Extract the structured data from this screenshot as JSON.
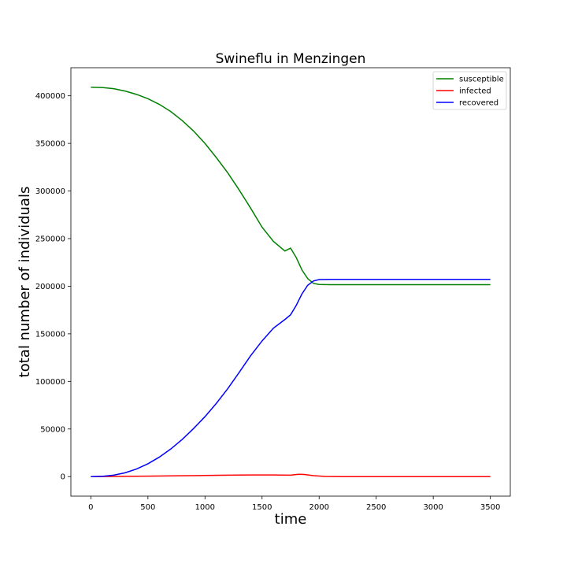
{
  "chart_data": {
    "type": "line",
    "title": "Swineflu in Menzingen",
    "xlabel": "time",
    "ylabel": "total number of individuals",
    "xlim": [
      -175,
      3675
    ],
    "ylim": [
      -20500,
      429500
    ],
    "xticks": [
      0,
      500,
      1000,
      1500,
      2000,
      2500,
      3000,
      3500
    ],
    "yticks": [
      0,
      50000,
      100000,
      150000,
      200000,
      250000,
      300000,
      350000,
      400000
    ],
    "legend_position": "top-right",
    "grid": false,
    "series": [
      {
        "name": "susceptible",
        "color": "#008000",
        "points": [
          [
            0,
            409000
          ],
          [
            100,
            408700
          ],
          [
            200,
            407500
          ],
          [
            300,
            405000
          ],
          [
            400,
            401500
          ],
          [
            500,
            397000
          ],
          [
            600,
            391000
          ],
          [
            700,
            383500
          ],
          [
            800,
            374000
          ],
          [
            900,
            363000
          ],
          [
            1000,
            350000
          ],
          [
            1100,
            335000
          ],
          [
            1200,
            319000
          ],
          [
            1300,
            301000
          ],
          [
            1400,
            282000
          ],
          [
            1500,
            262000
          ],
          [
            1600,
            247000
          ],
          [
            1700,
            237000
          ],
          [
            1750,
            240000
          ],
          [
            1800,
            230000
          ],
          [
            1850,
            217000
          ],
          [
            1900,
            208000
          ],
          [
            1950,
            203000
          ],
          [
            2000,
            201800
          ],
          [
            2100,
            201600
          ],
          [
            2500,
            201600
          ],
          [
            3000,
            201600
          ],
          [
            3500,
            201600
          ]
        ]
      },
      {
        "name": "infected",
        "color": "#ff0000",
        "points": [
          [
            0,
            0
          ],
          [
            200,
            200
          ],
          [
            500,
            500
          ],
          [
            800,
            900
          ],
          [
            1000,
            1200
          ],
          [
            1200,
            1500
          ],
          [
            1400,
            1700
          ],
          [
            1600,
            1700
          ],
          [
            1750,
            1500
          ],
          [
            1820,
            2500
          ],
          [
            1870,
            2200
          ],
          [
            1950,
            1000
          ],
          [
            2050,
            200
          ],
          [
            2200,
            0
          ],
          [
            3500,
            0
          ]
        ]
      },
      {
        "name": "recovered",
        "color": "#0000ff",
        "points": [
          [
            0,
            0
          ],
          [
            100,
            300
          ],
          [
            200,
            1500
          ],
          [
            300,
            4000
          ],
          [
            400,
            8000
          ],
          [
            500,
            13500
          ],
          [
            600,
            20500
          ],
          [
            700,
            29000
          ],
          [
            800,
            39000
          ],
          [
            900,
            50500
          ],
          [
            1000,
            63000
          ],
          [
            1100,
            77000
          ],
          [
            1200,
            92500
          ],
          [
            1300,
            109500
          ],
          [
            1400,
            127000
          ],
          [
            1500,
            142500
          ],
          [
            1600,
            156000
          ],
          [
            1700,
            165000
          ],
          [
            1750,
            170000
          ],
          [
            1800,
            180000
          ],
          [
            1850,
            192000
          ],
          [
            1900,
            201000
          ],
          [
            1950,
            205500
          ],
          [
            2000,
            207000
          ],
          [
            2100,
            207200
          ],
          [
            2500,
            207200
          ],
          [
            3000,
            207200
          ],
          [
            3500,
            207200
          ]
        ]
      }
    ]
  }
}
